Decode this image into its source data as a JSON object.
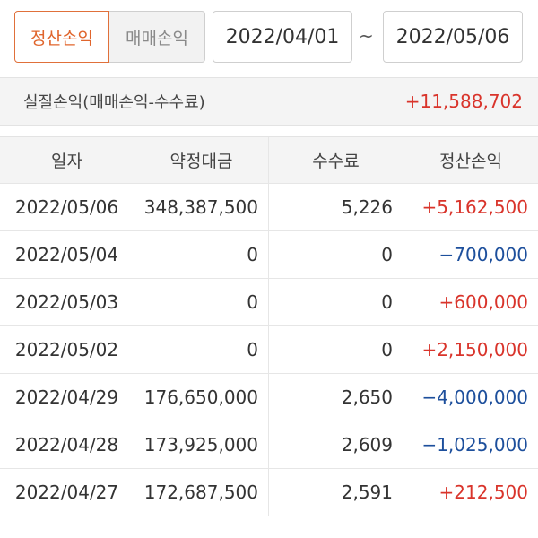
{
  "filter": {
    "tab_active": "정산손익",
    "tab_inactive": "매매손익",
    "date_from": "2022/04/01",
    "separator": "~",
    "date_to": "2022/05/06"
  },
  "summary": {
    "label": "실질손익(매매손익-수수료)",
    "value": "+11,588,702"
  },
  "table": {
    "headers": [
      "일자",
      "약정대금",
      "수수료",
      "정산손익"
    ],
    "rows": [
      {
        "date": "2022/05/06",
        "amount": "348,387,500",
        "fee": "5,226",
        "pnl": "+5,162,500",
        "sign": "pos"
      },
      {
        "date": "2022/05/04",
        "amount": "0",
        "fee": "0",
        "pnl": "−700,000",
        "sign": "neg"
      },
      {
        "date": "2022/05/03",
        "amount": "0",
        "fee": "0",
        "pnl": "+600,000",
        "sign": "pos"
      },
      {
        "date": "2022/05/02",
        "amount": "0",
        "fee": "0",
        "pnl": "+2,150,000",
        "sign": "pos"
      },
      {
        "date": "2022/04/29",
        "amount": "176,650,000",
        "fee": "2,650",
        "pnl": "−4,000,000",
        "sign": "neg"
      },
      {
        "date": "2022/04/28",
        "amount": "173,925,000",
        "fee": "2,609",
        "pnl": "−1,025,000",
        "sign": "neg"
      },
      {
        "date": "2022/04/27",
        "amount": "172,687,500",
        "fee": "2,591",
        "pnl": "+212,500",
        "sign": "pos"
      }
    ]
  },
  "colors": {
    "accent": "#e0652c",
    "positive": "#d9342b",
    "negative": "#1d4f9c"
  }
}
